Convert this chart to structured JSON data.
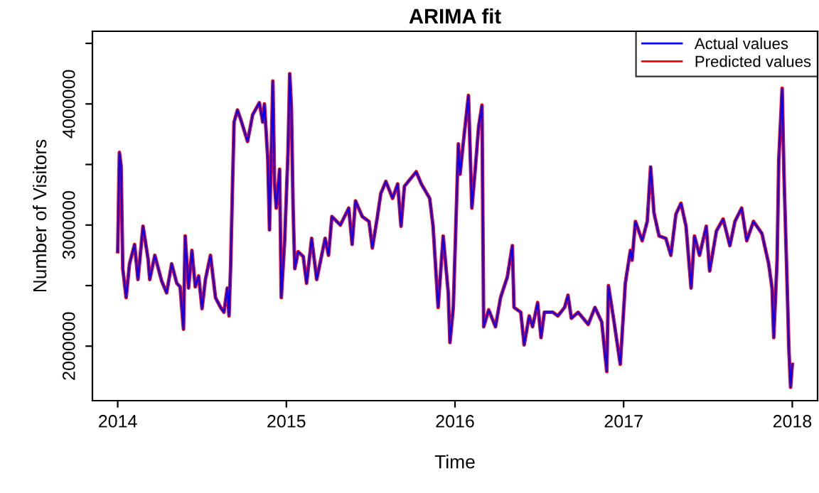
{
  "chart_data": {
    "type": "line",
    "title": "ARIMA fit",
    "xlabel": "Time",
    "ylabel": "Number of Visitors",
    "x": [
      2014.0,
      2014.01,
      2014.02,
      2014.03,
      2014.05,
      2014.07,
      2014.1,
      2014.12,
      2014.15,
      2014.18,
      2014.19,
      2014.22,
      2014.26,
      2014.29,
      2014.32,
      2014.35,
      2014.37,
      2014.39,
      2014.4,
      2014.42,
      2014.44,
      2014.46,
      2014.48,
      2014.5,
      2014.52,
      2014.55,
      2014.58,
      2014.61,
      2014.63,
      2014.65,
      2014.66,
      2014.67,
      2014.68,
      2014.69,
      2014.71,
      2014.73,
      2014.77,
      2014.8,
      2014.84,
      2014.86,
      2014.87,
      2014.89,
      2014.9,
      2014.92,
      2014.93,
      2014.94,
      2014.96,
      2014.97,
      2014.99,
      2015.01,
      2015.02,
      2015.03,
      2015.04,
      2015.05,
      2015.07,
      2015.1,
      2015.12,
      2015.15,
      2015.18,
      2015.23,
      2015.25,
      2015.27,
      2015.32,
      2015.37,
      2015.39,
      2015.41,
      2015.45,
      2015.49,
      2015.51,
      2015.54,
      2015.56,
      2015.59,
      2015.63,
      2015.66,
      2015.68,
      2015.7,
      2015.77,
      2015.8,
      2015.85,
      2015.87,
      2015.9,
      2015.93,
      2015.96,
      2015.97,
      2015.99,
      2016.01,
      2016.02,
      2016.03,
      2016.05,
      2016.08,
      2016.1,
      2016.12,
      2016.14,
      2016.16,
      2016.17,
      2016.2,
      2016.24,
      2016.27,
      2016.31,
      2016.34,
      2016.35,
      2016.39,
      2016.41,
      2016.44,
      2016.46,
      2016.49,
      2016.51,
      2016.53,
      2016.58,
      2016.61,
      2016.65,
      2016.67,
      2016.69,
      2016.73,
      2016.79,
      2016.83,
      2016.87,
      2016.9,
      2016.91,
      2016.94,
      2016.98,
      2017.01,
      2017.04,
      2017.05,
      2017.07,
      2017.11,
      2017.14,
      2017.16,
      2017.18,
      2017.21,
      2017.25,
      2017.28,
      2017.31,
      2017.34,
      2017.37,
      2017.4,
      2017.42,
      2017.45,
      2017.49,
      2017.51,
      2017.55,
      2017.59,
      2017.63,
      2017.66,
      2017.7,
      2017.73,
      2017.77,
      2017.82,
      2017.86,
      2017.88,
      2017.89,
      2017.91,
      2017.92,
      2017.94,
      2017.95,
      2017.97,
      2017.98,
      2017.99,
      2018.0
    ],
    "series": [
      {
        "name": "Actual values",
        "color": "#0000ff",
        "values": [
          2780000,
          3600000,
          3490000,
          2640000,
          2400000,
          2680000,
          2840000,
          2550000,
          2990000,
          2720000,
          2550000,
          2750000,
          2540000,
          2440000,
          2680000,
          2520000,
          2490000,
          2140000,
          2910000,
          2480000,
          2790000,
          2490000,
          2580000,
          2310000,
          2550000,
          2750000,
          2400000,
          2320000,
          2280000,
          2480000,
          2250000,
          2680000,
          3280000,
          3850000,
          3950000,
          3870000,
          3690000,
          3910000,
          4010000,
          3850000,
          4000000,
          3540000,
          2960000,
          4190000,
          3340000,
          3140000,
          3460000,
          2400000,
          2870000,
          3610000,
          4250000,
          3970000,
          3140000,
          2640000,
          2780000,
          2740000,
          2520000,
          2890000,
          2550000,
          2890000,
          2750000,
          3070000,
          3000000,
          3140000,
          2840000,
          3200000,
          3070000,
          3030000,
          2810000,
          3070000,
          3260000,
          3360000,
          3220000,
          3340000,
          2990000,
          3320000,
          3440000,
          3340000,
          3220000,
          2990000,
          2320000,
          2910000,
          2440000,
          2030000,
          2320000,
          3220000,
          3670000,
          3420000,
          3690000,
          4070000,
          3140000,
          3460000,
          3810000,
          3990000,
          2160000,
          2300000,
          2160000,
          2400000,
          2570000,
          2830000,
          2320000,
          2280000,
          2010000,
          2250000,
          2160000,
          2360000,
          2070000,
          2280000,
          2280000,
          2250000,
          2320000,
          2420000,
          2230000,
          2280000,
          2180000,
          2320000,
          2200000,
          1790000,
          2500000,
          2230000,
          1850000,
          2520000,
          2790000,
          2710000,
          3030000,
          2870000,
          3030000,
          3480000,
          3100000,
          2910000,
          2890000,
          2750000,
          3090000,
          3180000,
          2990000,
          2480000,
          2910000,
          2750000,
          2990000,
          2620000,
          2950000,
          3050000,
          2830000,
          3030000,
          3140000,
          2870000,
          3030000,
          2930000,
          2680000,
          2480000,
          2070000,
          2710000,
          3540000,
          4130000,
          3460000,
          2480000,
          1970000,
          1660000,
          1850000
        ]
      },
      {
        "name": "Predicted values",
        "color": "#ff0000",
        "values": [
          2780000,
          3600000,
          3490000,
          2640000,
          2400000,
          2680000,
          2840000,
          2550000,
          2990000,
          2720000,
          2550000,
          2750000,
          2540000,
          2440000,
          2680000,
          2520000,
          2490000,
          2140000,
          2910000,
          2480000,
          2790000,
          2490000,
          2580000,
          2310000,
          2550000,
          2750000,
          2400000,
          2320000,
          2280000,
          2480000,
          2250000,
          2680000,
          3280000,
          3850000,
          3950000,
          3870000,
          3690000,
          3910000,
          4010000,
          3850000,
          4000000,
          3540000,
          2960000,
          4190000,
          3340000,
          3140000,
          3460000,
          2400000,
          2870000,
          3610000,
          4250000,
          3970000,
          3140000,
          2640000,
          2780000,
          2740000,
          2520000,
          2890000,
          2550000,
          2890000,
          2750000,
          3070000,
          3000000,
          3140000,
          2840000,
          3200000,
          3070000,
          3030000,
          2810000,
          3070000,
          3260000,
          3360000,
          3220000,
          3340000,
          2990000,
          3320000,
          3440000,
          3340000,
          3220000,
          2990000,
          2320000,
          2910000,
          2440000,
          2030000,
          2320000,
          3220000,
          3670000,
          3420000,
          3690000,
          4070000,
          3140000,
          3460000,
          3810000,
          3990000,
          2160000,
          2300000,
          2160000,
          2400000,
          2570000,
          2830000,
          2320000,
          2280000,
          2010000,
          2250000,
          2160000,
          2360000,
          2070000,
          2280000,
          2280000,
          2250000,
          2320000,
          2420000,
          2230000,
          2280000,
          2180000,
          2320000,
          2200000,
          1790000,
          2500000,
          2230000,
          1850000,
          2520000,
          2790000,
          2710000,
          3030000,
          2870000,
          3030000,
          3480000,
          3100000,
          2910000,
          2890000,
          2750000,
          3090000,
          3180000,
          2990000,
          2480000,
          2910000,
          2750000,
          2990000,
          2620000,
          2950000,
          3050000,
          2830000,
          3030000,
          3140000,
          2870000,
          3030000,
          2930000,
          2680000,
          2480000,
          2070000,
          2710000,
          3540000,
          4130000,
          3460000,
          2480000,
          1970000,
          1660000,
          1850000
        ]
      }
    ],
    "xlim": [
      2013.85,
      2018.15
    ],
    "xticks": [
      2014,
      2015,
      2016,
      2017,
      2018
    ],
    "ylim": [
      1550000,
      4600000
    ],
    "yticks": [
      2000000,
      {
        "value": 2500000,
        "label": null
      },
      3000000,
      {
        "value": 3500000,
        "label": null
      },
      4000000,
      {
        "value": 4500000,
        "label": null
      }
    ],
    "grid": false,
    "legend": "top right",
    "line_style": "solid",
    "marker": "none"
  }
}
